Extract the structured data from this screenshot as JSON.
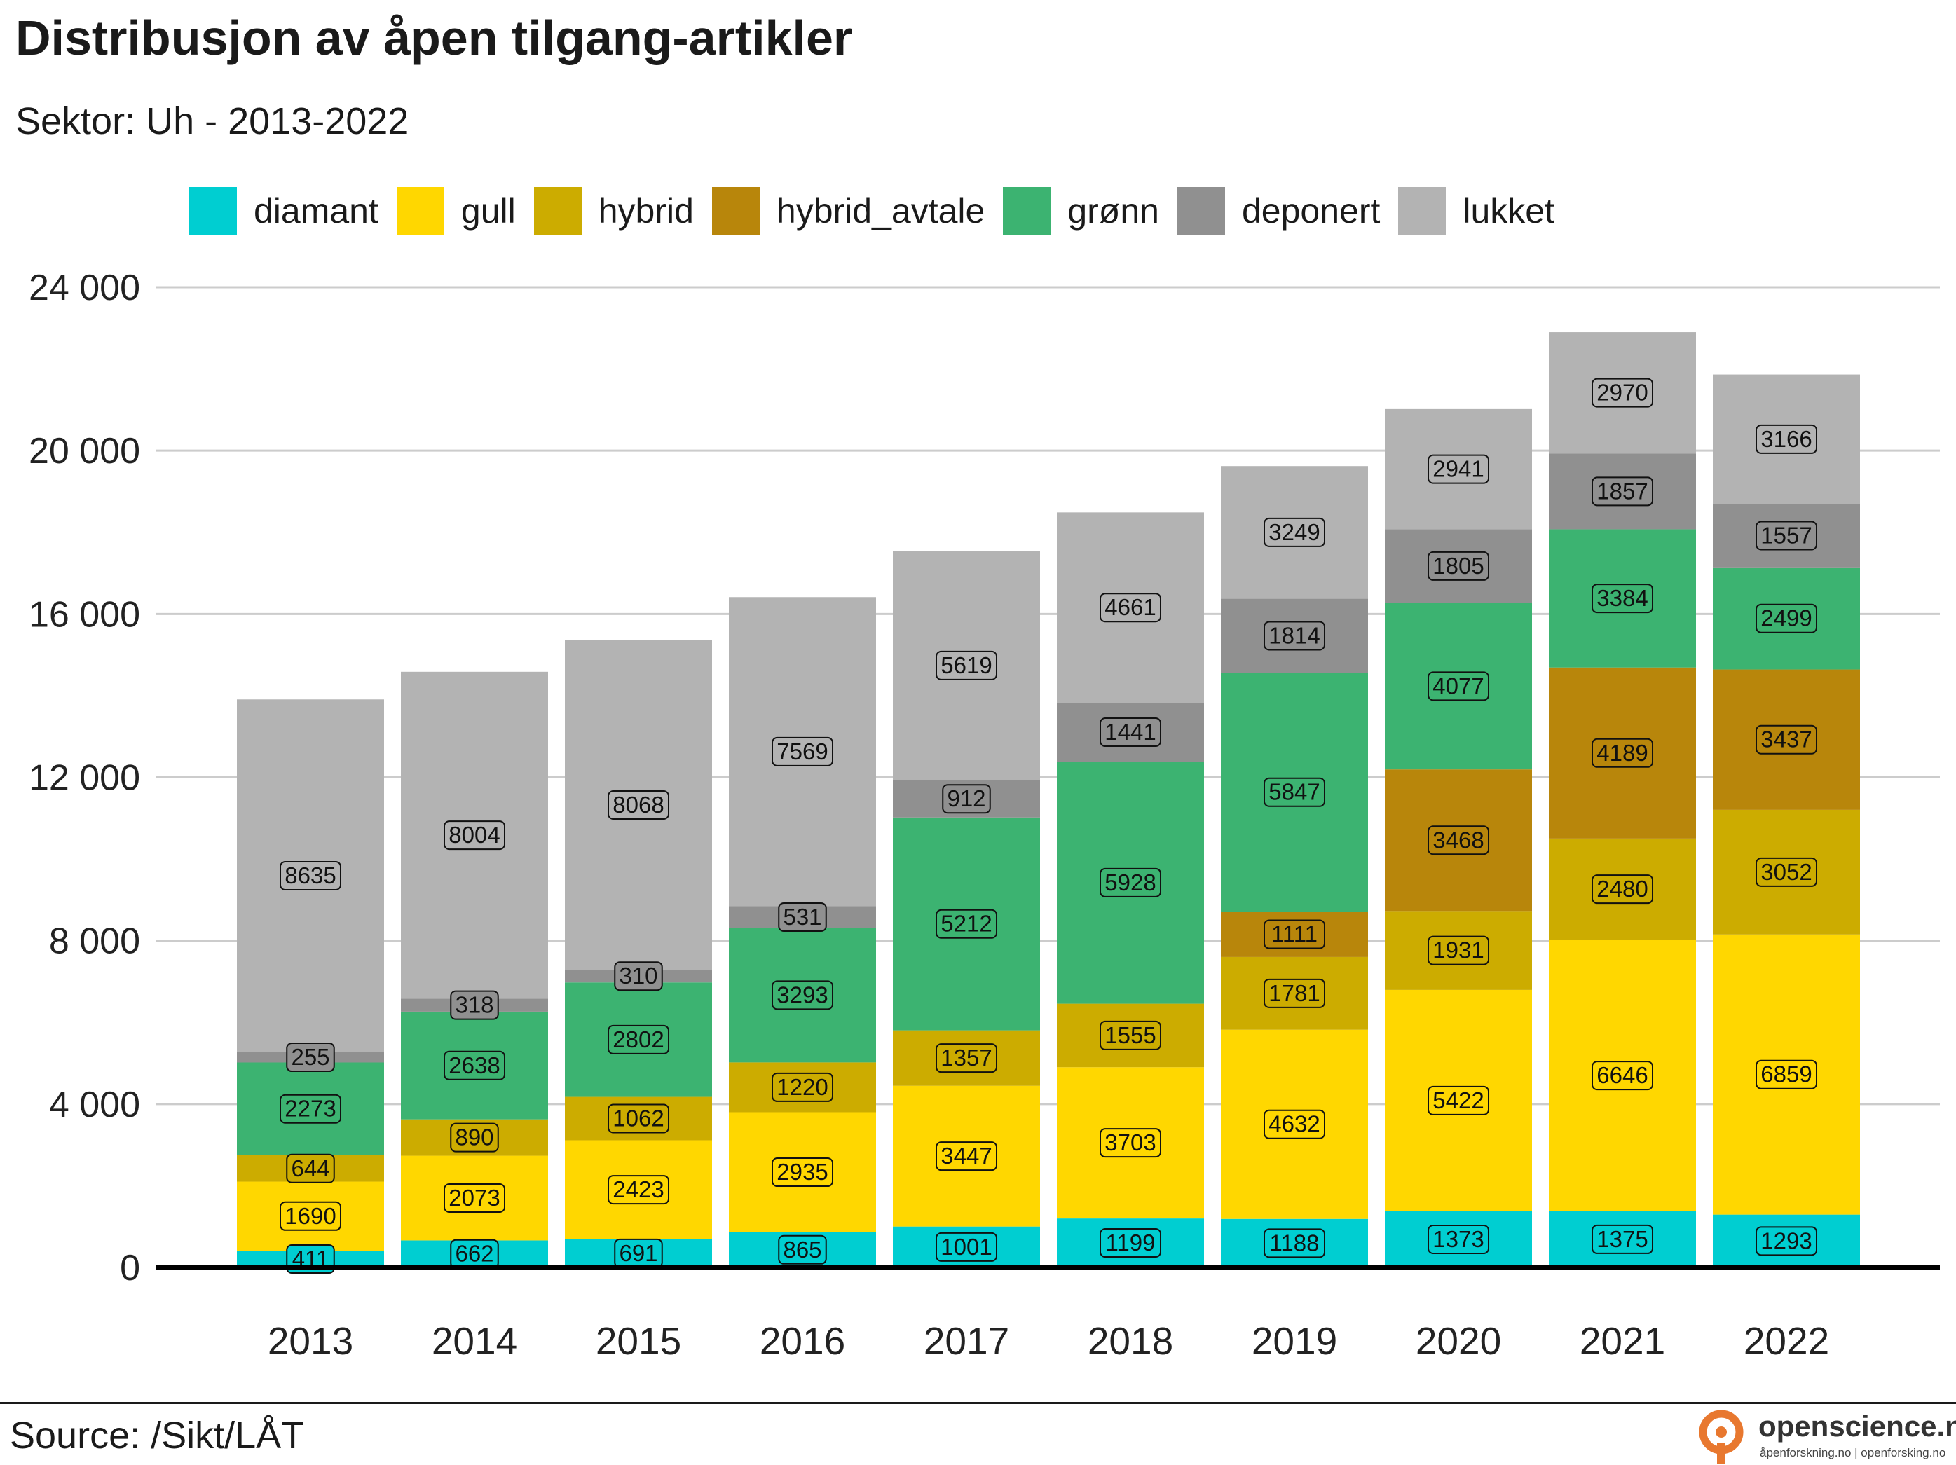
{
  "chart_data": {
    "type": "bar",
    "stacked": true,
    "title": "Distribusjon av åpen tilgang-artikler",
    "subtitle": "Sektor: Uh - 2013-2022",
    "xlabel": "",
    "ylabel": "",
    "categories": [
      "2013",
      "2014",
      "2015",
      "2016",
      "2017",
      "2018",
      "2019",
      "2020",
      "2021",
      "2022"
    ],
    "ylim": [
      0,
      24000
    ],
    "yticks": [
      0,
      4000,
      8000,
      12000,
      16000,
      20000,
      24000
    ],
    "ytick_labels": [
      "0",
      "4 000",
      "8 000",
      "12 000",
      "16 000",
      "20 000",
      "24 000"
    ],
    "grid": true,
    "legend_position": "top",
    "series": [
      {
        "name": "diamant",
        "color": "#00CED1",
        "values": [
          411,
          662,
          691,
          865,
          1001,
          1199,
          1188,
          1373,
          1375,
          1293
        ]
      },
      {
        "name": "gull",
        "color": "#FFD700",
        "values": [
          1690,
          2073,
          2423,
          2935,
          3447,
          3703,
          4632,
          5422,
          6646,
          6859
        ]
      },
      {
        "name": "hybrid",
        "color": "#CCAC00",
        "values": [
          644,
          890,
          1062,
          1220,
          1357,
          1555,
          1781,
          1931,
          2480,
          3052
        ]
      },
      {
        "name": "hybrid_avtale",
        "color": "#B8860B",
        "values": [
          0,
          0,
          0,
          0,
          0,
          0,
          1111,
          3468,
          4189,
          3437
        ]
      },
      {
        "name": "grønn",
        "color": "#3CB371",
        "values": [
          2273,
          2638,
          2802,
          3293,
          5212,
          5928,
          5847,
          4077,
          3384,
          2499
        ]
      },
      {
        "name": "deponert",
        "color": "#909090",
        "values": [
          255,
          318,
          310,
          531,
          912,
          1441,
          1814,
          1805,
          1857,
          1557
        ]
      },
      {
        "name": "lukket",
        "color": "#B3B3B3",
        "values": [
          8635,
          8004,
          8068,
          7569,
          5619,
          4661,
          3249,
          2941,
          2970,
          3166
        ]
      }
    ]
  },
  "footer": {
    "source": "Source: /Sikt/LÅT"
  },
  "logo": {
    "name": "openscience.no",
    "tagline": "åpenforskning.no | openforsking.no",
    "icon": "open-access-lock-icon",
    "color": "#E8782F"
  }
}
